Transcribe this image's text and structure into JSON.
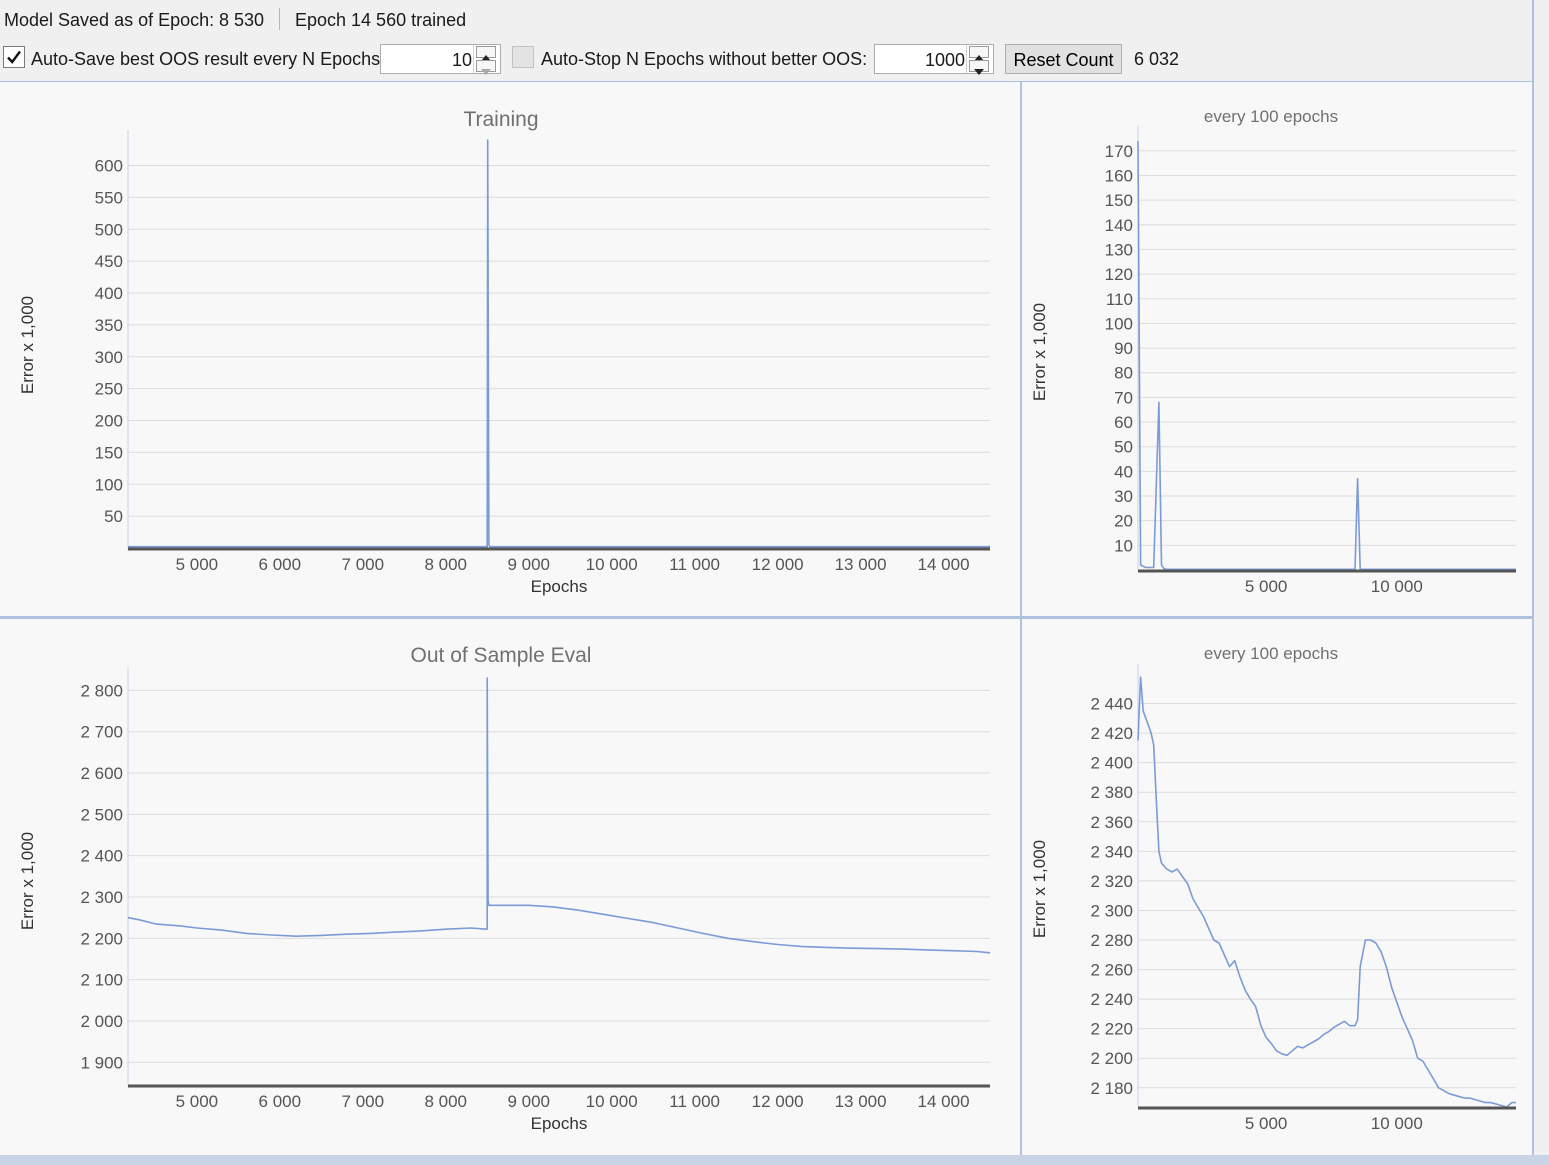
{
  "status": {
    "model_saved_label": "Model Saved as of Epoch:",
    "model_saved_epoch": "8 530",
    "epoch_trained": "Epoch 14 560 trained"
  },
  "controls": {
    "autosave_checked": true,
    "autosave_label": "Auto-Save best OOS result every N Epochs:",
    "autosave_value": "10",
    "autostop_checked": false,
    "autostop_label": "Auto-Stop N Epochs without better OOS:",
    "autostop_value": "1000",
    "reset_label": "Reset Count",
    "count_value": "6 032"
  },
  "icons": {
    "check": "checkmark-icon",
    "up": "spin-up-icon",
    "down": "spin-down-icon"
  },
  "colors": {
    "series": "#7b9bd6",
    "grid": "#dcdcdc",
    "axis": "#555555",
    "title": "#707070"
  },
  "chart_data": [
    {
      "id": "training",
      "type": "line",
      "title": "Training",
      "xlabel": "Epochs",
      "ylabel": "Error x 1,000",
      "xlim": [
        4170,
        14560
      ],
      "ylim": [
        0,
        640
      ],
      "x_ticks": [
        5000,
        6000,
        7000,
        8000,
        9000,
        10000,
        11000,
        12000,
        13000,
        14000
      ],
      "x_tick_labels": [
        "5 000",
        "6 000",
        "7 000",
        "8 000",
        "9 000",
        "10 000",
        "11 000",
        "12 000",
        "13 000",
        "14 000"
      ],
      "y_ticks": [
        50,
        100,
        150,
        200,
        250,
        300,
        350,
        400,
        450,
        500,
        550,
        600
      ],
      "y_tick_labels": [
        "50",
        "100",
        "150",
        "200",
        "250",
        "300",
        "350",
        "400",
        "450",
        "500",
        "550",
        "600"
      ],
      "grid": true,
      "series": [
        {
          "x": [
            4170,
            8490,
            8500,
            8505,
            8520,
            8530,
            14560
          ],
          "y": [
            2,
            2,
            2,
            640,
            5,
            2,
            2
          ]
        }
      ]
    },
    {
      "id": "training-100",
      "type": "line",
      "title": "every 100 epochs",
      "xlabel": "",
      "ylabel": "Error x 1,000",
      "xlim": [
        100,
        14560
      ],
      "ylim": [
        0,
        176
      ],
      "x_ticks": [
        5000,
        10000
      ],
      "x_tick_labels": [
        "5 000",
        "10 000"
      ],
      "y_ticks": [
        10,
        20,
        30,
        40,
        50,
        60,
        70,
        80,
        90,
        100,
        110,
        120,
        130,
        140,
        150,
        160,
        170
      ],
      "y_tick_labels": [
        "10",
        "20",
        "30",
        "40",
        "50",
        "60",
        "70",
        "80",
        "90",
        "100",
        "110",
        "120",
        "130",
        "140",
        "150",
        "160",
        "170"
      ],
      "grid": true,
      "series": [
        {
          "x": [
            100,
            200,
            400,
            700,
            900,
            1000,
            1100,
            1200,
            8400,
            8500,
            8600,
            8700,
            14560
          ],
          "y": [
            174,
            2,
            1,
            1,
            68,
            2,
            0.5,
            0.3,
            0.3,
            37,
            0.3,
            0.3,
            0.3
          ]
        }
      ]
    },
    {
      "id": "oos",
      "type": "line",
      "title": "Out of Sample Eval",
      "xlabel": "Epochs",
      "ylabel": "Error x 1,000",
      "xlim": [
        4170,
        14560
      ],
      "ylim": [
        1845,
        2830
      ],
      "x_ticks": [
        5000,
        6000,
        7000,
        8000,
        9000,
        10000,
        11000,
        12000,
        13000,
        14000
      ],
      "x_tick_labels": [
        "5 000",
        "6 000",
        "7 000",
        "8 000",
        "9 000",
        "10 000",
        "11 000",
        "12 000",
        "13 000",
        "14 000"
      ],
      "y_ticks": [
        1900,
        2000,
        2100,
        2200,
        2300,
        2400,
        2500,
        2600,
        2700,
        2800
      ],
      "y_tick_labels": [
        "1 900",
        "2 000",
        "2 100",
        "2 200",
        "2 300",
        "2 400",
        "2 500",
        "2 600",
        "2 700",
        "2 800"
      ],
      "grid": true,
      "series": [
        {
          "x": [
            4170,
            4300,
            4500,
            4800,
            5000,
            5300,
            5600,
            5900,
            6200,
            6500,
            6800,
            7100,
            7400,
            7700,
            8000,
            8300,
            8500,
            8500,
            8510,
            8520,
            8550,
            8700,
            9000,
            9300,
            9600,
            9900,
            10200,
            10500,
            10800,
            11100,
            11400,
            11700,
            12000,
            12300,
            12600,
            12900,
            13200,
            13500,
            13800,
            14100,
            14400,
            14560
          ],
          "y": [
            2250,
            2245,
            2235,
            2230,
            2225,
            2220,
            2212,
            2208,
            2205,
            2207,
            2210,
            2212,
            2215,
            2218,
            2222,
            2225,
            2222,
            2830,
            2290,
            2280,
            2280,
            2280,
            2280,
            2276,
            2268,
            2258,
            2248,
            2238,
            2225,
            2212,
            2200,
            2192,
            2185,
            2180,
            2178,
            2176,
            2175,
            2174,
            2172,
            2170,
            2168,
            2165
          ]
        }
      ]
    },
    {
      "id": "oos-100",
      "type": "line",
      "title": "every 100 epochs",
      "xlabel": "",
      "ylabel": "Error x 1,000",
      "xlim": [
        100,
        14560
      ],
      "ylim": [
        2167,
        2460
      ],
      "x_ticks": [
        5000,
        10000
      ],
      "x_tick_labels": [
        "5 000",
        "10 000"
      ],
      "y_ticks": [
        2180,
        2200,
        2220,
        2240,
        2260,
        2280,
        2300,
        2320,
        2340,
        2360,
        2380,
        2400,
        2420,
        2440
      ],
      "y_tick_labels": [
        "2 180",
        "2 200",
        "2 220",
        "2 240",
        "2 260",
        "2 280",
        "2 300",
        "2 320",
        "2 340",
        "2 360",
        "2 380",
        "2 400",
        "2 420",
        "2 440"
      ],
      "grid": true,
      "series": [
        {
          "x": [
            100,
            200,
            300,
            400,
            500,
            600,
            700,
            800,
            900,
            1000,
            1200,
            1400,
            1600,
            1800,
            2000,
            2200,
            2400,
            2600,
            2800,
            3000,
            3200,
            3400,
            3600,
            3800,
            4000,
            4200,
            4400,
            4600,
            4800,
            5000,
            5200,
            5400,
            5600,
            5800,
            6000,
            6200,
            6400,
            6600,
            6800,
            7000,
            7200,
            7400,
            7600,
            7800,
            8000,
            8200,
            8400,
            8500,
            8600,
            8800,
            9000,
            9200,
            9400,
            9600,
            9800,
            10000,
            10200,
            10400,
            10600,
            10800,
            11000,
            11200,
            11400,
            11600,
            11800,
            12000,
            12200,
            12400,
            12600,
            12800,
            13000,
            13200,
            13400,
            13600,
            13800,
            14000,
            14200,
            14400,
            14560
          ],
          "y": [
            2415,
            2458,
            2435,
            2430,
            2425,
            2420,
            2412,
            2375,
            2340,
            2332,
            2328,
            2326,
            2328,
            2323,
            2318,
            2308,
            2302,
            2296,
            2288,
            2280,
            2278,
            2270,
            2262,
            2266,
            2255,
            2246,
            2240,
            2235,
            2222,
            2214,
            2210,
            2205,
            2203,
            2202,
            2205,
            2208,
            2207,
            2209,
            2211,
            2213,
            2216,
            2218,
            2221,
            2223,
            2225,
            2222,
            2222,
            2226,
            2262,
            2280,
            2280,
            2278,
            2272,
            2262,
            2248,
            2238,
            2228,
            2220,
            2212,
            2200,
            2198,
            2192,
            2186,
            2180,
            2178,
            2176,
            2175,
            2174,
            2173,
            2173,
            2172,
            2171,
            2170,
            2170,
            2169,
            2168,
            2167,
            2170,
            2170
          ]
        }
      ]
    }
  ]
}
